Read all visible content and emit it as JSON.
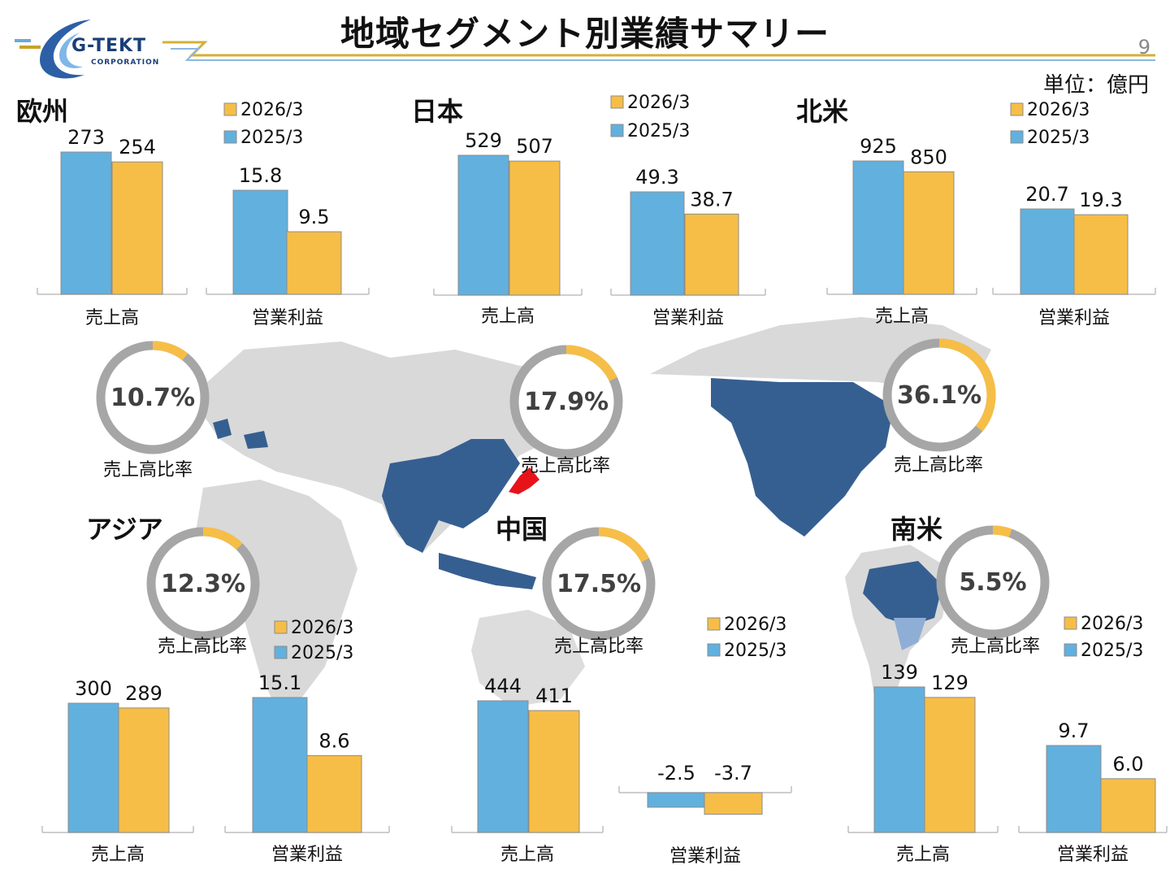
{
  "header": {
    "title": "地域セグメント別業績サマリー",
    "page_number": "9",
    "unit_label": "単位：億円",
    "logo_name": "G-TEKT",
    "logo_sub": "CORPORATION"
  },
  "colors": {
    "current": "#f6be47",
    "prior": "#62b0de",
    "ring_base": "#a6a6a6",
    "highlight_region": "#365f91",
    "japan": "#e8131a",
    "map_base": "#d9d9d9",
    "brand": "#1a3f78"
  },
  "legend": {
    "current": "2026/3",
    "prior": "2025/3"
  },
  "axis_labels": {
    "sales": "売上高",
    "profit": "営業利益",
    "share": "売上高比率"
  },
  "chart_data": [
    {
      "region": "欧州",
      "type": "bar",
      "unit": "億円",
      "sales": {
        "prior": 273,
        "current": 254
      },
      "profit": {
        "prior": 15.8,
        "current": 9.5
      },
      "share_pct": 10.7,
      "share_label": "10.7%"
    },
    {
      "region": "日本",
      "type": "bar",
      "unit": "億円",
      "sales": {
        "prior": 529,
        "current": 507
      },
      "profit": {
        "prior": 49.3,
        "current": 38.7
      },
      "share_pct": 17.9,
      "share_label": "17.9%"
    },
    {
      "region": "北米",
      "type": "bar",
      "unit": "億円",
      "sales": {
        "prior": 925,
        "current": 850
      },
      "profit": {
        "prior": 20.7,
        "current": 19.3
      },
      "share_pct": 36.1,
      "share_label": "36.1%"
    },
    {
      "region": "アジア",
      "type": "bar",
      "unit": "億円",
      "sales": {
        "prior": 300,
        "current": 289
      },
      "profit": {
        "prior": 15.1,
        "current": 8.6
      },
      "share_pct": 12.3,
      "share_label": "12.3%"
    },
    {
      "region": "中国",
      "type": "bar",
      "unit": "億円",
      "sales": {
        "prior": 444,
        "current": 411
      },
      "profit": {
        "prior": -2.5,
        "current": -3.7
      },
      "share_pct": 17.5,
      "share_label": "17.5%"
    },
    {
      "region": "南米",
      "type": "bar",
      "unit": "億円",
      "sales": {
        "prior": 139,
        "current": 129
      },
      "profit": {
        "prior": 9.7,
        "current": 6.0
      },
      "profit_labels": {
        "prior": "9.7",
        "current": "6.0"
      },
      "share_pct": 5.5,
      "share_label": "5.5%"
    }
  ]
}
